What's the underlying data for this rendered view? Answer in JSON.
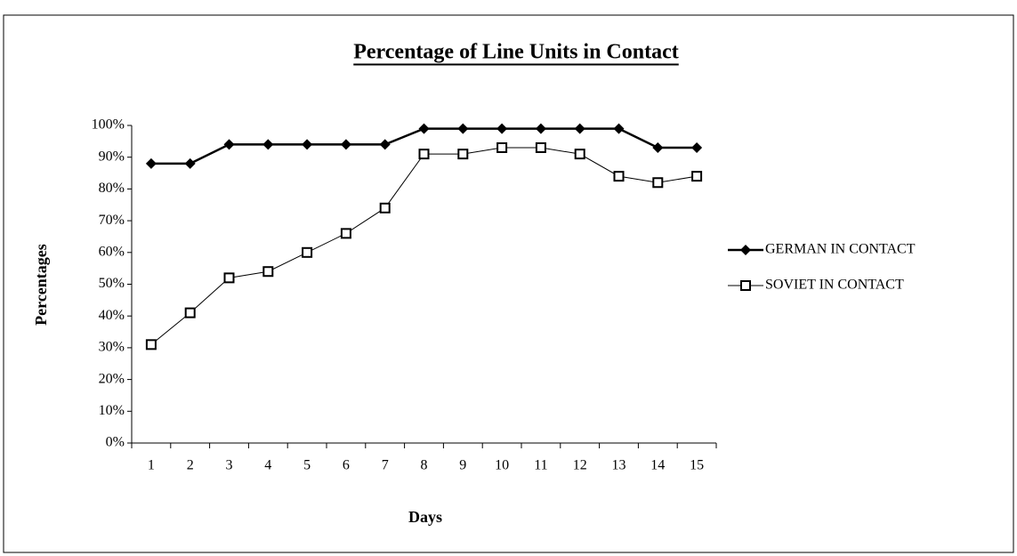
{
  "chart_data": {
    "type": "line",
    "title": "Percentage of Line Units in Contact",
    "x_label": "Days",
    "y_label": "Percentages",
    "categories": [
      "1",
      "2",
      "3",
      "4",
      "5",
      "6",
      "7",
      "8",
      "9",
      "10",
      "11",
      "12",
      "13",
      "14",
      "15"
    ],
    "series": [
      {
        "name": "GERMAN IN CONTACT",
        "color": "#000000",
        "marker": "diamond",
        "values": [
          88,
          88,
          94,
          94,
          94,
          94,
          94,
          99,
          99,
          99,
          99,
          99,
          99,
          93,
          93
        ]
      },
      {
        "name": "SOVIET IN CONTACT",
        "color": "#000000",
        "marker": "square",
        "values": [
          31,
          41,
          52,
          54,
          60,
          66,
          74,
          91,
          91,
          93,
          93,
          91,
          84,
          82,
          84
        ]
      }
    ],
    "ylim": [
      0,
      100
    ],
    "yticks": [
      {
        "value": 0,
        "label": "0%"
      },
      {
        "value": 10,
        "label": "10%"
      },
      {
        "value": 20,
        "label": "20%"
      },
      {
        "value": 30,
        "label": "30%"
      },
      {
        "value": 40,
        "label": "40%"
      },
      {
        "value": 50,
        "label": "50%"
      },
      {
        "value": 60,
        "label": "60%"
      },
      {
        "value": 70,
        "label": "70%"
      },
      {
        "value": 80,
        "label": "80%"
      },
      {
        "value": 90,
        "label": "90%"
      },
      {
        "value": 100,
        "label": "100%"
      }
    ],
    "grid": false,
    "legend": "right"
  }
}
